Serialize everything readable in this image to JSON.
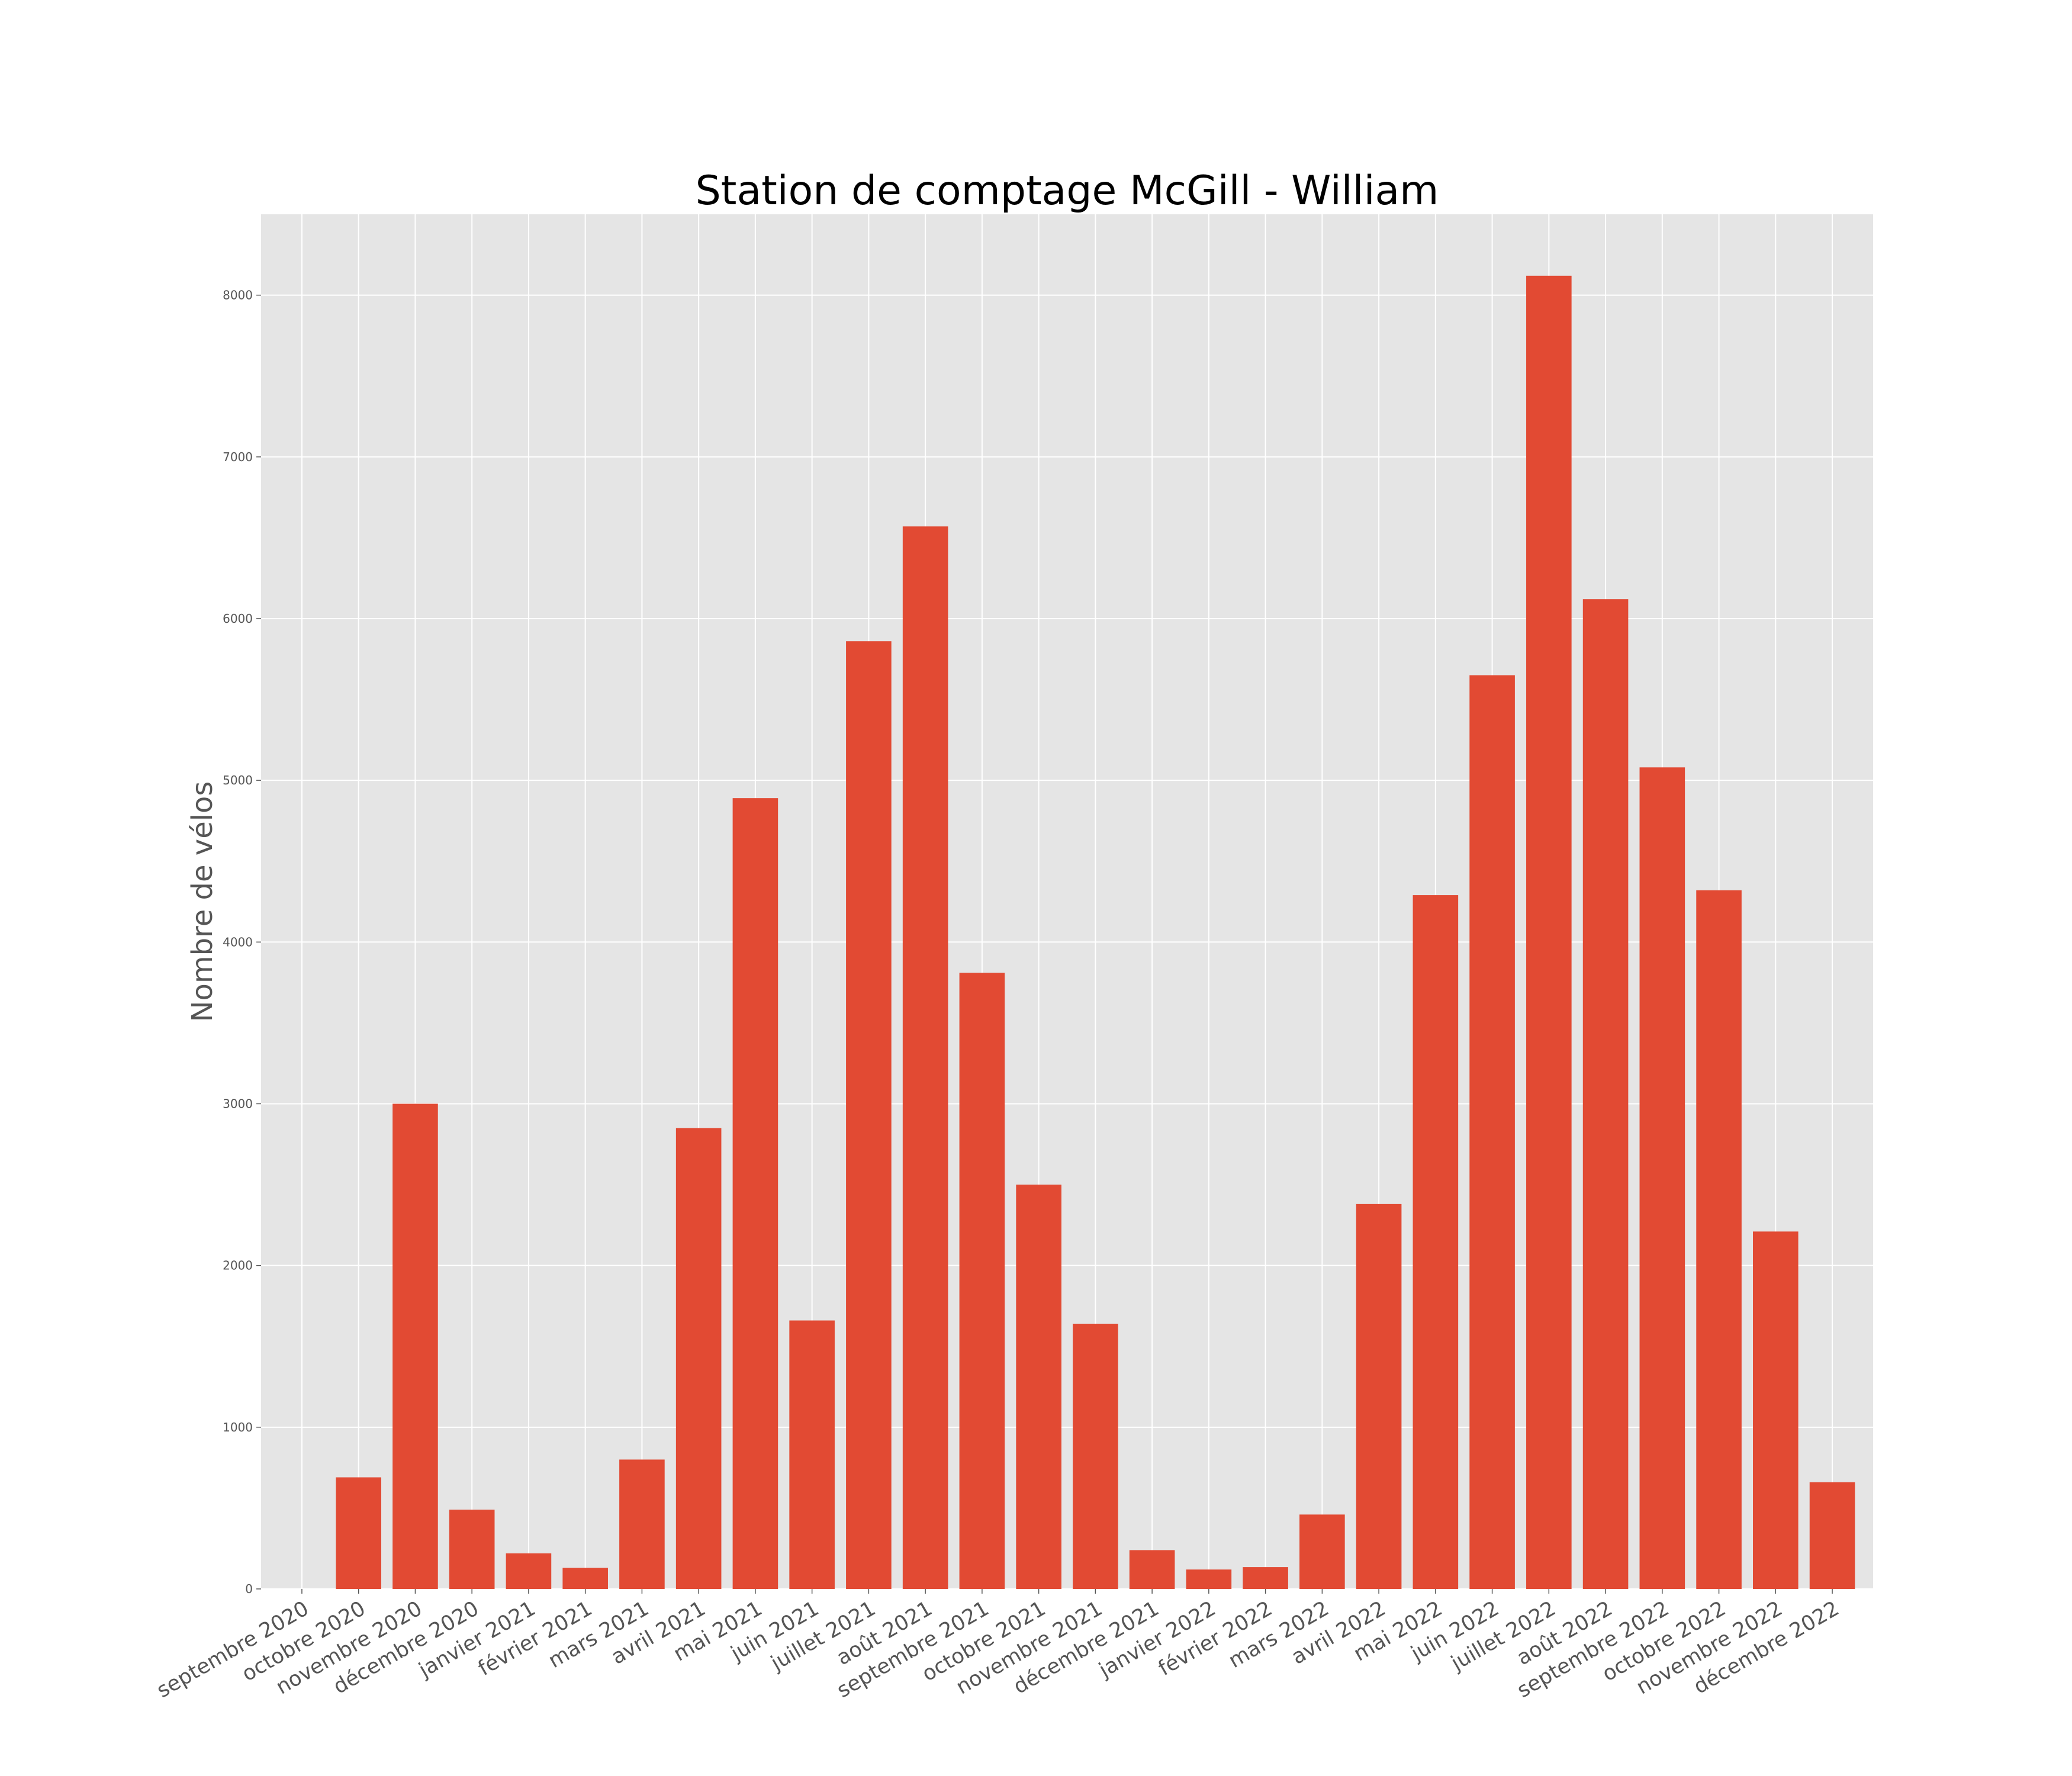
{
  "chart_data": {
    "type": "bar",
    "title": "Station de comptage McGill - William",
    "xlabel": "",
    "ylabel": "Nombre de vélos",
    "ylim": [
      0,
      8500
    ],
    "yticks": [
      0,
      1000,
      2000,
      3000,
      4000,
      5000,
      6000,
      7000,
      8000
    ],
    "grid": true,
    "categories": [
      "septembre 2020",
      "octobre 2020",
      "novembre 2020",
      "décembre 2020",
      "janvier 2021",
      "février 2021",
      "mars 2021",
      "avril 2021",
      "mai 2021",
      "juin 2021",
      "juillet 2021",
      "août 2021",
      "septembre 2021",
      "octobre 2021",
      "novembre 2021",
      "décembre 2021",
      "janvier 2022",
      "février 2022",
      "mars 2022",
      "avril 2022",
      "mai 2022",
      "juin 2022",
      "juillet 2022",
      "août 2022",
      "septembre 2022",
      "octobre 2022",
      "novembre 2022",
      "décembre 2022"
    ],
    "values": [
      0,
      690,
      3000,
      490,
      220,
      130,
      800,
      2850,
      4890,
      1660,
      5860,
      6570,
      3810,
      2500,
      1640,
      240,
      120,
      135,
      460,
      2380,
      4290,
      5650,
      8120,
      6120,
      5080,
      4320,
      2210,
      660
    ],
    "colors": {
      "bar": "#E24A33",
      "background": "#E5E5E5",
      "grid": "#FFFFFF",
      "text": "#555555"
    }
  }
}
